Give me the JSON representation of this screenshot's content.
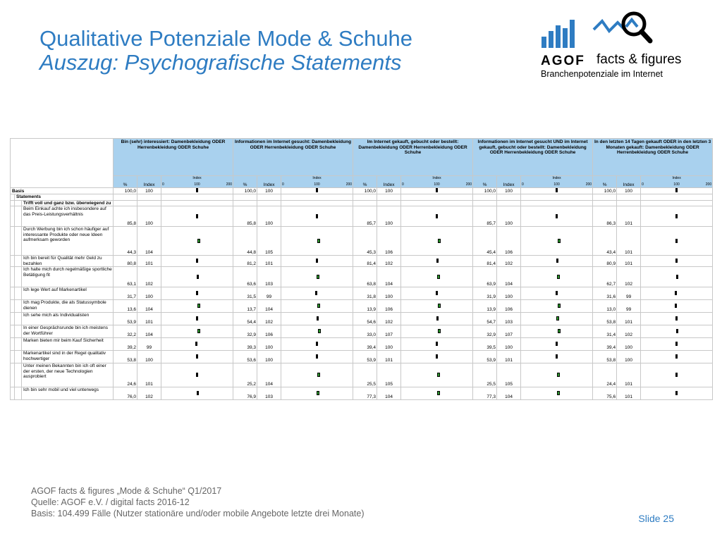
{
  "title": "Qualitative Potenziale Mode & Schuhe",
  "subtitle": "Auszug: Psychografische Statements",
  "logo": {
    "brand": "AGOF",
    "tagline": "facts & figures",
    "sub": "Branchenpotenziale im Internet",
    "accent": "#2e7cc2"
  },
  "table": {
    "groups": [
      "Bin (sehr) interessiert: Damenbekleidung ODER Herrenbekleidung ODER Schuhe",
      "Informationen im Internet gesucht: Damenbekleidung ODER Herrenbekleidung ODER Schuhe",
      "Im Internet gekauft, gebucht oder bestellt: Damenbekleidung ODER Herrenbekleidung ODER Schuhe",
      "Informationen im Internet gesucht UND im Internet gekauft, gebucht oder bestellt: Damenbekleidung ODER Herrenbekleidung ODER Schuhe",
      "In den letzten 14 Tagen gekauft ODER in den letzten 3 Monaten gekauft: Damenbekleidung ODER Herrenbekleidung ODER Schuhe"
    ],
    "col_pct": "%",
    "col_index": "Index",
    "scale_ticks": [
      "0",
      "100",
      "200"
    ],
    "basis_label": "Basis",
    "statements_label": "Statements",
    "trifft_label": "Trifft voll und ganz bzw. überwiegend zu",
    "basis": [
      {
        "pct": "100,0",
        "index": "100"
      },
      {
        "pct": "100,0",
        "index": "100"
      },
      {
        "pct": "100,0",
        "index": "100"
      },
      {
        "pct": "100,0",
        "index": "100"
      },
      {
        "pct": "100,0",
        "index": "100"
      }
    ],
    "rows": [
      {
        "label": "Beim Einkauf achte ich insbesondere auf das Preis-Leistungsverhältnis",
        "vals": [
          [
            "85,8",
            "100"
          ],
          [
            "85,8",
            "100"
          ],
          [
            "85,7",
            "100"
          ],
          [
            "85,7",
            "100"
          ],
          [
            "86,3",
            "101"
          ]
        ]
      },
      {
        "label": "Durch Werbung bin ich schon häufiger auf interessante Produkte oder neue Ideen aufmerksam geworden",
        "vals": [
          [
            "44,3",
            "104"
          ],
          [
            "44,8",
            "105"
          ],
          [
            "45,3",
            "106"
          ],
          [
            "45,4",
            "106"
          ],
          [
            "43,4",
            "101"
          ]
        ]
      },
      {
        "label": "Ich bin bereit für Qualität mehr Geld zu bezahlen",
        "vals": [
          [
            "80,8",
            "101"
          ],
          [
            "81,2",
            "101"
          ],
          [
            "81,4",
            "102"
          ],
          [
            "81,4",
            "102"
          ],
          [
            "80,9",
            "101"
          ]
        ]
      },
      {
        "label": "Ich halte mich durch regelmäßige sportliche Betätigung fit",
        "vals": [
          [
            "63,1",
            "102"
          ],
          [
            "63,6",
            "103"
          ],
          [
            "63,8",
            "104"
          ],
          [
            "63,9",
            "104"
          ],
          [
            "62,7",
            "102"
          ]
        ]
      },
      {
        "label": "Ich lege Wert auf Markenartikel",
        "vals": [
          [
            "31,7",
            "100"
          ],
          [
            "31,5",
            "99"
          ],
          [
            "31,8",
            "100"
          ],
          [
            "31,9",
            "100"
          ],
          [
            "31,6",
            "99"
          ]
        ]
      },
      {
        "label": "Ich mag Produkte, die als Statussymbole dienen",
        "vals": [
          [
            "13,6",
            "104"
          ],
          [
            "13,7",
            "104"
          ],
          [
            "13,9",
            "106"
          ],
          [
            "13,9",
            "106"
          ],
          [
            "13,0",
            "99"
          ]
        ]
      },
      {
        "label": "Ich sehe mich als Individualisten",
        "vals": [
          [
            "53,9",
            "101"
          ],
          [
            "54,4",
            "102"
          ],
          [
            "54,6",
            "102"
          ],
          [
            "54,7",
            "103"
          ],
          [
            "53,8",
            "101"
          ]
        ]
      },
      {
        "label": "In einer Gesprächsrunde bin ich meistens der Wortführer",
        "vals": [
          [
            "32,2",
            "104"
          ],
          [
            "32,9",
            "106"
          ],
          [
            "33,0",
            "107"
          ],
          [
            "32,9",
            "107"
          ],
          [
            "31,4",
            "102"
          ]
        ]
      },
      {
        "label": "Marken bieten mir beim Kauf Sicherheit",
        "vals": [
          [
            "39,2",
            "99"
          ],
          [
            "39,3",
            "100"
          ],
          [
            "39,4",
            "100"
          ],
          [
            "39,5",
            "100"
          ],
          [
            "39,4",
            "100"
          ]
        ]
      },
      {
        "label": "Markenartikel sind in der Regel qualitativ hochwertiger",
        "vals": [
          [
            "53,8",
            "100"
          ],
          [
            "53,6",
            "100"
          ],
          [
            "53,9",
            "101"
          ],
          [
            "53,9",
            "101"
          ],
          [
            "53,8",
            "100"
          ]
        ]
      },
      {
        "label": "Unter meinen Bekannten bin ich oft einer der ersten, der neue Technologien ausprobiert",
        "vals": [
          [
            "24,6",
            "101"
          ],
          [
            "25,2",
            "104"
          ],
          [
            "25,5",
            "105"
          ],
          [
            "25,5",
            "105"
          ],
          [
            "24,4",
            "101"
          ]
        ]
      },
      {
        "label": "Ich bin sehr mobil und viel unterwegs",
        "vals": [
          [
            "76,0",
            "102"
          ],
          [
            "76,9",
            "103"
          ],
          [
            "77,3",
            "104"
          ],
          [
            "77,3",
            "104"
          ],
          [
            "75,6",
            "101"
          ]
        ]
      }
    ],
    "marker_colors": {
      "normal": "#000000",
      "high": "#2a9a2a"
    }
  },
  "footer": {
    "line1": "AGOF facts & figures „Mode & Schuhe“ Q1/2017",
    "line2": "Quelle: AGOF e.V. / digital facts 2016-12",
    "line3": "Basis: 104.499 Fälle (Nutzer stationäre und/oder mobile Angebote letzte drei Monate)"
  },
  "slide_label": "Slide 25"
}
